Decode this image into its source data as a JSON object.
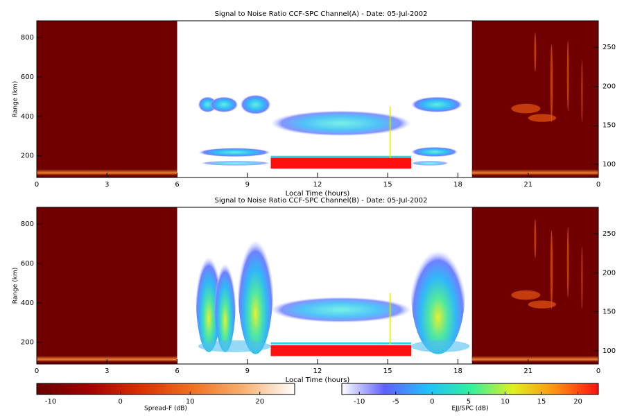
{
  "chart_data": [
    {
      "type": "heatmap",
      "title": "Signal to Noise Ratio CCF-SPC Channel(A) - Date: 05-Jul-2002",
      "xlabel": "Local Time (hours)",
      "ylabel": "Range (km)",
      "xlim": [
        0,
        24
      ],
      "xticks": [
        0,
        3,
        6,
        9,
        12,
        15,
        18,
        21,
        {
          "value": 24,
          "label": "0"
        }
      ],
      "ylim": [
        90,
        885
      ],
      "yticks": [
        200,
        400,
        600,
        800
      ],
      "y2lim": [
        83,
        284
      ],
      "y2ticks": [
        100,
        150,
        200,
        250
      ]
    },
    {
      "type": "heatmap",
      "title": "Signal to Noise Ratio CCF-SPC Channel(B) - Date: 05-Jul-2002",
      "xlabel": "Local Time (hours)",
      "ylabel": "Range (km)",
      "xlim": [
        0,
        24
      ],
      "xticks": [
        0,
        3,
        6,
        9,
        12,
        15,
        18,
        21,
        {
          "value": 24,
          "label": "0"
        }
      ],
      "ylim": [
        90,
        885
      ],
      "yticks": [
        200,
        400,
        600,
        800
      ],
      "y2lim": [
        83,
        284
      ],
      "y2ticks": [
        100,
        150,
        200,
        250
      ]
    }
  ],
  "colorbars": [
    {
      "label": "Spread-F (dB)",
      "lim": [
        -12,
        25
      ],
      "ticks": [
        -10,
        0,
        10,
        20
      ],
      "colors": [
        "#6a0000",
        "#a00000",
        "#d83000",
        "#f07020",
        "#f8b070",
        "#ffffff"
      ]
    },
    {
      "label": "EJJ/SPC (dB)",
      "lim": [
        -12.4,
        22.8
      ],
      "ticks": [
        -10,
        -5,
        0,
        5,
        10,
        15,
        20
      ],
      "colors": [
        "#ffffff",
        "#6060ff",
        "#20c0ff",
        "#30f0a0",
        "#e0f020",
        "#ff9010",
        "#ff1010"
      ]
    }
  ]
}
